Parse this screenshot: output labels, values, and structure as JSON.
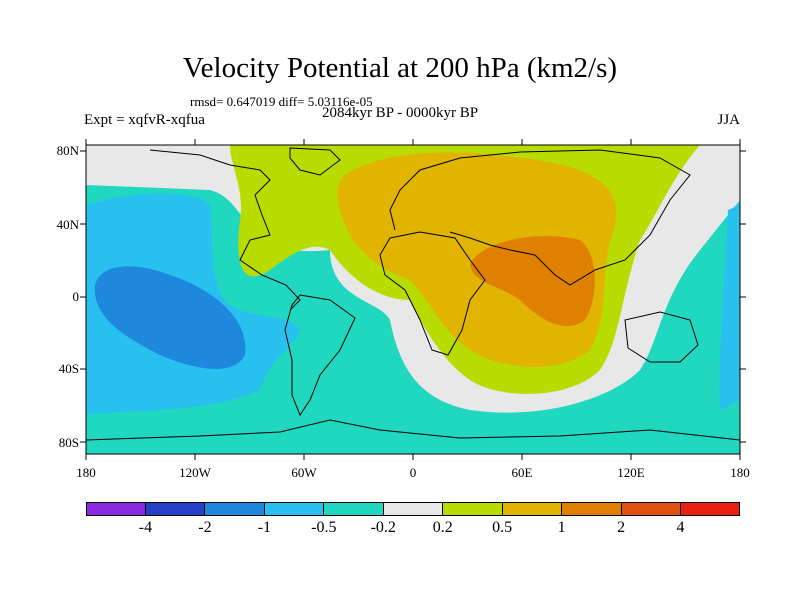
{
  "title": "Velocity Potential at 200 hPa (km2/s)",
  "stats": "rmsd= 0.647019 diff= 5.03116e-05",
  "experiment": "Expt = xqfvR-xqfua",
  "period": "2084kyr BP - 0000kyr BP",
  "season": "JJA",
  "lat_ticks": [
    "80N",
    "40N",
    "0",
    "40S",
    "80S"
  ],
  "lon_ticks": [
    "180",
    "120W",
    "60W",
    "0",
    "60E",
    "120E",
    "180"
  ],
  "colorbar": {
    "colors": [
      "#8a2be2",
      "#2440c8",
      "#1e88dc",
      "#28c0ee",
      "#20d8c0",
      "#e8e8e8",
      "#b8dc00",
      "#e0b400",
      "#e08000",
      "#e05010",
      "#e82010"
    ],
    "labels": [
      "-4",
      "-2",
      "-1",
      "-0.5",
      "-0.2",
      "0.2",
      "0.5",
      "1",
      "2",
      "4"
    ]
  },
  "field_colors": {
    "neutral": "#e8e8e8",
    "weak_positive": "#b8dc00",
    "positive": "#e0b400",
    "strong_positive": "#e08000",
    "weak_negative": "#20d8c0",
    "negative": "#28c0ee",
    "strong_negative": "#1e88dc",
    "coastline": "#000000"
  }
}
